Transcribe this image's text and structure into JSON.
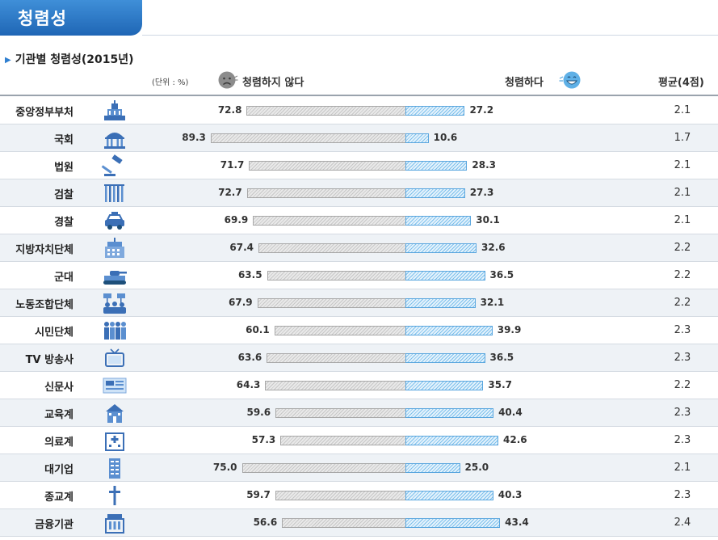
{
  "header": {
    "banner_title": "청렴성",
    "subtitle": "기관별 청렴성(2015년)"
  },
  "chart_data": {
    "type": "bar",
    "title": "기관별 청렴성(2015년)",
    "unit_label": "(단위 : %)",
    "series": [
      {
        "name": "청렴하지 않다",
        "icon": "frowning-face-icon",
        "color": "#c7c7c7"
      },
      {
        "name": "청렴하다",
        "icon": "smiling-face-icon",
        "color": "#7cc0ec"
      }
    ],
    "avg_label": "평균(4점)",
    "xlim": [
      0,
      100
    ],
    "rows": [
      {
        "category": "중앙정부부처",
        "icon": "government-building-icon",
        "not_clean": "72.8",
        "clean": "27.2",
        "avg": "2.1"
      },
      {
        "category": "국회",
        "icon": "national-assembly-icon",
        "not_clean": "89.3",
        "clean": "10.6",
        "avg": "1.7"
      },
      {
        "category": "법원",
        "icon": "gavel-icon",
        "not_clean": "71.7",
        "clean": "28.3",
        "avg": "2.1"
      },
      {
        "category": "검찰",
        "icon": "prison-bars-icon",
        "not_clean": "72.7",
        "clean": "27.3",
        "avg": "2.1"
      },
      {
        "category": "경찰",
        "icon": "police-car-icon",
        "not_clean": "69.9",
        "clean": "30.1",
        "avg": "2.1"
      },
      {
        "category": "지방자치단체",
        "icon": "city-hall-icon",
        "not_clean": "67.4",
        "clean": "32.6",
        "avg": "2.2"
      },
      {
        "category": "군대",
        "icon": "tank-icon",
        "not_clean": "63.5",
        "clean": "36.5",
        "avg": "2.2"
      },
      {
        "category": "노동조합단체",
        "icon": "protest-crowd-icon",
        "not_clean": "67.9",
        "clean": "32.1",
        "avg": "2.2"
      },
      {
        "category": "시민단체",
        "icon": "people-group-icon",
        "not_clean": "60.1",
        "clean": "39.9",
        "avg": "2.3"
      },
      {
        "category": "TV 방송사",
        "icon": "television-icon",
        "not_clean": "63.6",
        "clean": "36.5",
        "avg": "2.3"
      },
      {
        "category": "신문사",
        "icon": "newspaper-icon",
        "not_clean": "64.3",
        "clean": "35.7",
        "avg": "2.2"
      },
      {
        "category": "교육계",
        "icon": "school-icon",
        "not_clean": "59.6",
        "clean": "40.4",
        "avg": "2.3"
      },
      {
        "category": "의료계",
        "icon": "hospital-icon",
        "not_clean": "57.3",
        "clean": "42.6",
        "avg": "2.3"
      },
      {
        "category": "대기업",
        "icon": "office-tower-icon",
        "not_clean": "75.0",
        "clean": "25.0",
        "avg": "2.1"
      },
      {
        "category": "종교계",
        "icon": "cross-icon",
        "not_clean": "59.7",
        "clean": "40.3",
        "avg": "2.3"
      },
      {
        "category": "금융기관",
        "icon": "bank-icon",
        "not_clean": "56.6",
        "clean": "43.4",
        "avg": "2.4"
      }
    ]
  }
}
